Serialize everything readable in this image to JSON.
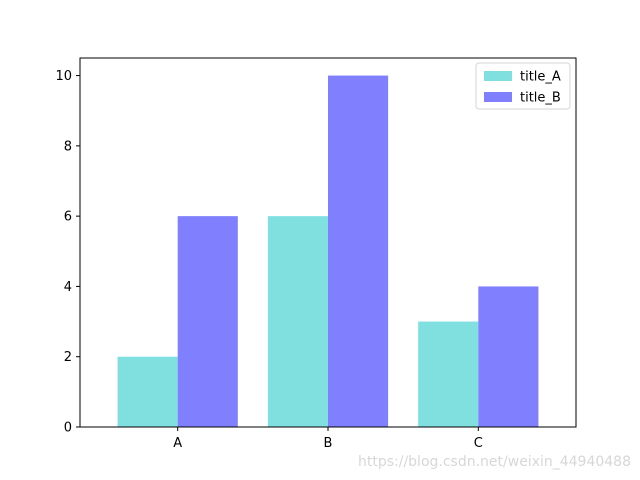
{
  "chart_data": {
    "type": "bar",
    "categories": [
      "A",
      "B",
      "C"
    ],
    "series": [
      {
        "name": "title_A",
        "values": [
          2,
          6,
          3
        ],
        "color": "#80dfdf"
      },
      {
        "name": "title_B",
        "values": [
          6,
          10,
          4
        ],
        "color": "#8080ff"
      }
    ],
    "ylim": [
      0,
      10.5
    ],
    "yticks": [
      0,
      2,
      4,
      6,
      8,
      10
    ],
    "legend_position": "top-right",
    "grid": false
  },
  "watermark": "https://blog.csdn.net/weixin_44940488"
}
